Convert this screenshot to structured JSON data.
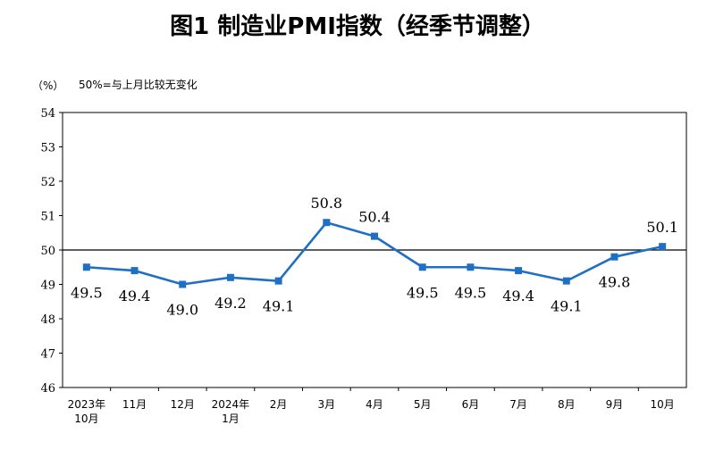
{
  "chart_data": {
    "type": "line",
    "title": "图1  制造业PMI指数（经季节调整）",
    "unit_label": "（%）",
    "reference_note": "50%=与上月比较无变化",
    "reference_value": 50,
    "ylim": [
      46,
      54
    ],
    "yticks": [
      "54",
      "53",
      "52",
      "51",
      "50",
      "49",
      "48",
      "47",
      "46"
    ],
    "categories": [
      [
        "2023年",
        "10月"
      ],
      [
        "11月"
      ],
      [
        "12月"
      ],
      [
        "2024年",
        "1月"
      ],
      [
        "2月"
      ],
      [
        "3月"
      ],
      [
        "4月"
      ],
      [
        "5月"
      ],
      [
        "6月"
      ],
      [
        "7月"
      ],
      [
        "8月"
      ],
      [
        "9月"
      ],
      [
        "10月"
      ]
    ],
    "values": [
      49.5,
      49.4,
      49.0,
      49.2,
      49.1,
      50.8,
      50.4,
      49.5,
      49.5,
      49.4,
      49.1,
      49.8,
      50.1
    ],
    "data_labels": [
      "49.5",
      "49.4",
      "49.0",
      "49.2",
      "49.1",
      "50.8",
      "50.4",
      "49.5",
      "49.5",
      "49.4",
      "49.1",
      "49.8",
      "50.1"
    ],
    "label_side": [
      "below",
      "below",
      "below",
      "below",
      "below",
      "above",
      "above",
      "below",
      "below",
      "below",
      "below",
      "below",
      "above"
    ],
    "series_color": "#1f6fc5",
    "reference_line_color": "#000000",
    "grid": false
  }
}
